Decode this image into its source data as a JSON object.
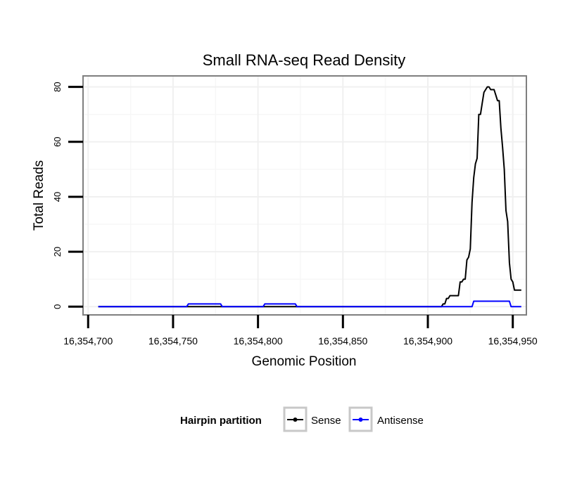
{
  "chart_data": {
    "type": "line",
    "title": "Small RNA-seq Read Density",
    "xlabel": "Genomic Position",
    "ylabel": "Total Reads",
    "xlim": [
      16354697,
      16354958
    ],
    "ylim": [
      -3,
      84
    ],
    "x_ticks": [
      16354700,
      16354750,
      16354800,
      16354850,
      16354900,
      16354950
    ],
    "x_tick_labels": [
      "16,354,700",
      "16,354,750",
      "16,354,800",
      "16,354,850",
      "16,354,900",
      "16,354,950"
    ],
    "y_ticks": [
      0,
      20,
      40,
      60,
      80
    ],
    "y_tick_labels": [
      "0",
      "20",
      "40",
      "60",
      "80"
    ],
    "grid": true,
    "legend": {
      "title": "Hairpin partition",
      "position": "bottom",
      "entries": [
        "Sense",
        "Antisense"
      ]
    },
    "series": [
      {
        "name": "Sense",
        "color": "#000000",
        "x": [
          16354706,
          16354908,
          16354909,
          16354910,
          16354911,
          16354912,
          16354913,
          16354914,
          16354915,
          16354916,
          16354917,
          16354918,
          16354919,
          16354920,
          16354921,
          16354922,
          16354923,
          16354924,
          16354925,
          16354926,
          16354927,
          16354928,
          16354929,
          16354930,
          16354931,
          16354932,
          16354933,
          16354934,
          16354935,
          16354936,
          16354937,
          16354938,
          16354939,
          16354940,
          16354941,
          16354942,
          16354943,
          16354944,
          16354945,
          16354946,
          16354947,
          16354948,
          16354949,
          16354950,
          16354951,
          16354952,
          16354953,
          16354954,
          16354955
        ],
        "values": [
          0,
          0,
          1,
          1,
          3,
          3,
          4,
          4,
          4,
          4,
          4,
          4,
          9,
          9,
          10,
          10,
          17,
          18,
          21,
          38,
          47,
          52,
          54,
          70,
          70,
          74,
          78,
          79,
          80,
          80,
          79,
          79,
          79,
          77,
          75,
          75,
          65,
          58,
          50,
          35,
          31,
          16,
          10,
          9,
          6,
          6,
          6,
          6,
          6
        ]
      },
      {
        "name": "Antisense",
        "color": "#0000ff",
        "x": [
          16354706,
          16354758,
          16354759,
          16354778,
          16354779,
          16354803,
          16354804,
          16354822,
          16354823,
          16354908,
          16354926,
          16354927,
          16354948,
          16354949,
          16354955
        ],
        "values": [
          0,
          0,
          1,
          1,
          0,
          0,
          1,
          1,
          0,
          0,
          0,
          2,
          2,
          0,
          0
        ]
      }
    ]
  }
}
